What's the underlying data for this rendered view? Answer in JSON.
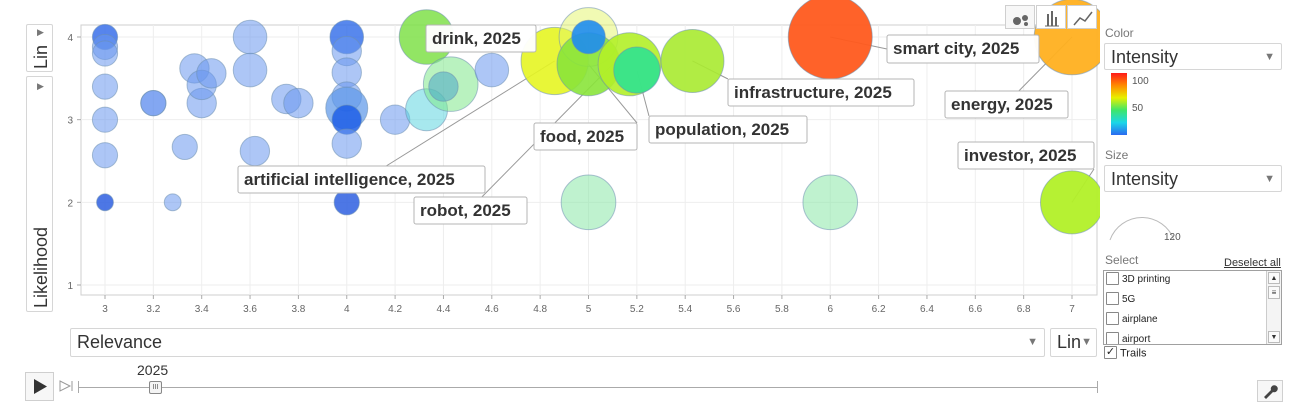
{
  "chart_data": {
    "type": "scatter",
    "subtype": "bubble",
    "xlabel": "Relevance",
    "ylabel": "Likelihood",
    "xlim": [
      2.9,
      7.1
    ],
    "ylim": [
      0.8,
      4.15
    ],
    "x_ticks": [
      "3",
      "3.2",
      "3.4",
      "3.6",
      "3.8",
      "4",
      "4.2",
      "4.4",
      "4.6",
      "4.8",
      "5",
      "5.2",
      "5.4",
      "5.6",
      "5.8",
      "6",
      "6.2",
      "6.4",
      "6.6",
      "6.8",
      "7"
    ],
    "y_ticks": [
      "1",
      "2",
      "3",
      "4"
    ],
    "grid": true,
    "time_value": "2025",
    "points": [
      {
        "x": 3,
        "y": 4,
        "color": "#3a70ea",
        "alpha": 0.85,
        "size": 3
      },
      {
        "x": 3,
        "y": 3.88,
        "color": "#6a98ef",
        "alpha": 0.55,
        "size": 3
      },
      {
        "x": 3,
        "y": 3.8,
        "color": "#6a98ef",
        "alpha": 0.55,
        "size": 3
      },
      {
        "x": 3,
        "y": 3.4,
        "color": "#6a98ef",
        "alpha": 0.55,
        "size": 3
      },
      {
        "x": 3,
        "y": 3,
        "color": "#6a98ef",
        "alpha": 0.55,
        "size": 3
      },
      {
        "x": 3,
        "y": 2.57,
        "color": "#6a98ef",
        "alpha": 0.55,
        "size": 3
      },
      {
        "x": 3,
        "y": 2,
        "color": "#2e5fe0",
        "alpha": 0.85,
        "size": 2
      },
      {
        "x": 3.2,
        "y": 3.2,
        "color": "#3a70ea",
        "alpha": 0.5,
        "size": 3
      },
      {
        "x": 3.2,
        "y": 3.2,
        "color": "#6a98ef",
        "alpha": 0.5,
        "size": 3
      },
      {
        "x": 3.28,
        "y": 2,
        "color": "#6a98ef",
        "alpha": 0.55,
        "size": 2
      },
      {
        "x": 3.33,
        "y": 2.67,
        "color": "#6a98ef",
        "alpha": 0.55,
        "size": 3
      },
      {
        "x": 3.37,
        "y": 3.62,
        "color": "#6a98ef",
        "alpha": 0.55,
        "size": 3.5
      },
      {
        "x": 3.4,
        "y": 3.2,
        "color": "#6a98ef",
        "alpha": 0.55,
        "size": 3.5
      },
      {
        "x": 3.4,
        "y": 3.42,
        "color": "#6a98ef",
        "alpha": 0.55,
        "size": 3.5
      },
      {
        "x": 3.44,
        "y": 3.56,
        "color": "#6a98ef",
        "alpha": 0.55,
        "size": 3.5
      },
      {
        "x": 3.6,
        "y": 4,
        "color": "#6a98ef",
        "alpha": 0.55,
        "size": 4
      },
      {
        "x": 3.6,
        "y": 3.6,
        "color": "#6a98ef",
        "alpha": 0.55,
        "size": 4
      },
      {
        "x": 3.62,
        "y": 2.62,
        "color": "#6a98ef",
        "alpha": 0.55,
        "size": 3.5
      },
      {
        "x": 3.75,
        "y": 3.25,
        "color": "#6a98ef",
        "alpha": 0.55,
        "size": 3.5
      },
      {
        "x": 3.8,
        "y": 3.2,
        "color": "#6a98ef",
        "alpha": 0.55,
        "size": 3.5
      },
      {
        "x": 4,
        "y": 4,
        "color": "#2e6ae8",
        "alpha": 0.8,
        "size": 4
      },
      {
        "x": 4,
        "y": 3.83,
        "color": "#6a98ef",
        "alpha": 0.55,
        "size": 3.5
      },
      {
        "x": 4,
        "y": 3.57,
        "color": "#6a98ef",
        "alpha": 0.55,
        "size": 3.5
      },
      {
        "x": 4,
        "y": 3.28,
        "color": "#6a98ef",
        "alpha": 0.55,
        "size": 3.5
      },
      {
        "x": 4,
        "y": 3.14,
        "color": "#5a96e8",
        "alpha": 0.7,
        "size": 5
      },
      {
        "x": 4,
        "y": 3,
        "color": "#1e5fe6",
        "alpha": 0.85,
        "size": 3.5
      },
      {
        "x": 4,
        "y": 2.71,
        "color": "#6a98ef",
        "alpha": 0.55,
        "size": 3.5
      },
      {
        "x": 4,
        "y": 2,
        "color": "#2e5fe0",
        "alpha": 0.85,
        "size": 3
      },
      {
        "x": 4.2,
        "y": 3,
        "color": "#6a98ef",
        "alpha": 0.55,
        "size": 3.5
      },
      {
        "x": 4.33,
        "y": 3.12,
        "color": "#5fd6e0",
        "alpha": 0.55,
        "size": 5
      },
      {
        "x": 4.33,
        "y": 4,
        "color": "#7fe049",
        "alpha": 0.85,
        "size": 6.5
      },
      {
        "x": 4.43,
        "y": 3.43,
        "color": "#80e88a",
        "alpha": 0.55,
        "size": 6.5
      },
      {
        "x": 4.4,
        "y": 3.4,
        "color": "#4aa6c8",
        "alpha": 0.55,
        "size": 3.5
      },
      {
        "x": 4.6,
        "y": 3.6,
        "color": "#6a98ef",
        "alpha": 0.55,
        "size": 4
      },
      {
        "x": 4.86,
        "y": 3.71,
        "color": "#e6f522",
        "alpha": 0.9,
        "size": 8
      },
      {
        "x": 5,
        "y": 4,
        "color": "#e4f568",
        "alpha": 0.5,
        "size": 7
      },
      {
        "x": 5,
        "y": 3.67,
        "color": "#8ae43a",
        "alpha": 0.9,
        "size": 7.5
      },
      {
        "x": 5,
        "y": 4,
        "color": "#1e8cf0",
        "alpha": 0.9,
        "size": 4
      },
      {
        "x": 5,
        "y": 2,
        "color": "#8ae8a8",
        "alpha": 0.55,
        "size": 6.5
      },
      {
        "x": 5.17,
        "y": 3.67,
        "color": "#b2f028",
        "alpha": 0.9,
        "size": 7.5
      },
      {
        "x": 5.2,
        "y": 3.6,
        "color": "#30e290",
        "alpha": 0.9,
        "size": 5.5
      },
      {
        "x": 5.43,
        "y": 3.71,
        "color": "#a8ea30",
        "alpha": 0.9,
        "size": 7.5
      },
      {
        "x": 6,
        "y": 4,
        "color": "#ff5a1e",
        "alpha": 0.95,
        "size": 10
      },
      {
        "x": 6,
        "y": 2,
        "color": "#8ae8a8",
        "alpha": 0.55,
        "size": 6.5
      },
      {
        "x": 7,
        "y": 4,
        "color": "#ffb020",
        "alpha": 0.95,
        "size": 9
      },
      {
        "x": 7,
        "y": 2,
        "color": "#b2f028",
        "alpha": 0.95,
        "size": 7.5
      }
    ],
    "annotations": [
      {
        "text": "drink, 2025",
        "x": 4.33,
        "y": 4
      },
      {
        "text": "smart city, 2025",
        "x": 6,
        "y": 4
      },
      {
        "text": "infrastructure, 2025",
        "x": 5.43,
        "y": 3.71
      },
      {
        "text": "energy, 2025",
        "x": 7,
        "y": 4
      },
      {
        "text": "food, 2025",
        "x": 5,
        "y": 3.67
      },
      {
        "text": "population, 2025",
        "x": 5.2,
        "y": 3.6
      },
      {
        "text": "investor, 2025",
        "x": 7,
        "y": 2
      },
      {
        "text": "artificial intelligence, 2025",
        "x": 4.86,
        "y": 3.71
      },
      {
        "text": "robot, 2025",
        "x": 5.1,
        "y": 3.67
      }
    ]
  },
  "controls": {
    "y_scale": "Lin",
    "y_axis_select": "Likelihood",
    "x_axis_select": "Relevance",
    "x_scale": "Lin",
    "color_label": "Color",
    "color_select": "Intensity",
    "color_ticks": [
      "100",
      "50"
    ],
    "size_label": "Size",
    "size_select": "Intensity",
    "size_value": "120",
    "select_label": "Select",
    "deselect_all": "Deselect all",
    "select_items": [
      "3D printing",
      "5G",
      "airplane",
      "airport"
    ],
    "trails_label": "Trails",
    "play_year": "2025"
  }
}
